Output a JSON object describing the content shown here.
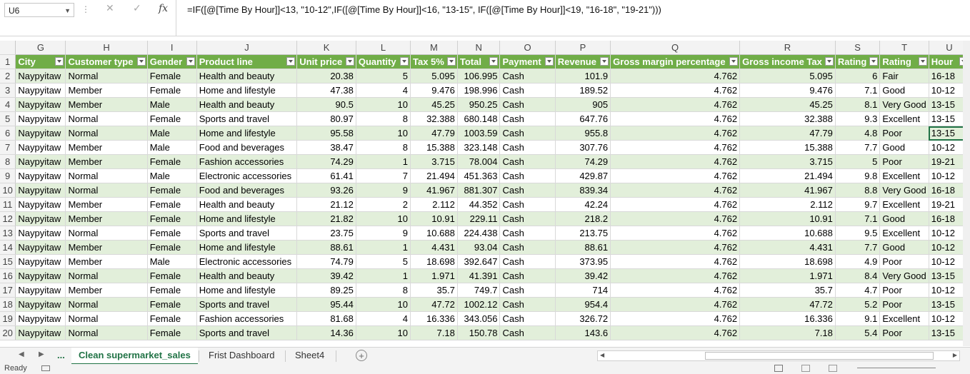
{
  "formula_bar": {
    "name_box": "U6",
    "formula": "=IF([@[Time By Hour]]<13, \"10-12\",IF([@[Time By Hour]]<16, \"13-15\", IF([@[Time By Hour]]<19, \"16-18\", \"19-21\")))",
    "fx": "fx",
    "cancel": "✕",
    "enter": "✓",
    "more": "⋮"
  },
  "columns": [
    "G",
    "H",
    "I",
    "J",
    "K",
    "L",
    "M",
    "N",
    "O",
    "P",
    "Q",
    "R",
    "S",
    "T",
    "U"
  ],
  "headers": [
    "City",
    "Customer type",
    "Gender",
    "Product line",
    "Unit price",
    "Quantity",
    "Tax 5%",
    "Total",
    "Payment",
    "Revenue",
    "Gross margin percentage",
    "Gross income Tax",
    "Rating",
    "Rating",
    "Hour"
  ],
  "rows": [
    {
      "n": "2",
      "c": [
        "Naypyitaw",
        "Normal",
        "Female",
        "Health and beauty",
        "20.38",
        "5",
        "5.095",
        "106.995",
        "Cash",
        "101.9",
        "4.762",
        "5.095",
        "6",
        "Fair",
        "16-18"
      ]
    },
    {
      "n": "3",
      "c": [
        "Naypyitaw",
        "Member",
        "Female",
        "Home and lifestyle",
        "47.38",
        "4",
        "9.476",
        "198.996",
        "Cash",
        "189.52",
        "4.762",
        "9.476",
        "7.1",
        "Good",
        "10-12"
      ]
    },
    {
      "n": "4",
      "c": [
        "Naypyitaw",
        "Member",
        "Male",
        "Health and beauty",
        "90.5",
        "10",
        "45.25",
        "950.25",
        "Cash",
        "905",
        "4.762",
        "45.25",
        "8.1",
        "Very Good",
        "13-15"
      ]
    },
    {
      "n": "5",
      "c": [
        "Naypyitaw",
        "Normal",
        "Female",
        "Sports and travel",
        "80.97",
        "8",
        "32.388",
        "680.148",
        "Cash",
        "647.76",
        "4.762",
        "32.388",
        "9.3",
        "Excellent",
        "13-15"
      ]
    },
    {
      "n": "6",
      "c": [
        "Naypyitaw",
        "Normal",
        "Male",
        "Home and lifestyle",
        "95.58",
        "10",
        "47.79",
        "1003.59",
        "Cash",
        "955.8",
        "4.762",
        "47.79",
        "4.8",
        "Poor",
        "13-15"
      ]
    },
    {
      "n": "7",
      "c": [
        "Naypyitaw",
        "Member",
        "Male",
        "Food and beverages",
        "38.47",
        "8",
        "15.388",
        "323.148",
        "Cash",
        "307.76",
        "4.762",
        "15.388",
        "7.7",
        "Good",
        "10-12"
      ]
    },
    {
      "n": "8",
      "c": [
        "Naypyitaw",
        "Member",
        "Female",
        "Fashion accessories",
        "74.29",
        "1",
        "3.715",
        "78.004",
        "Cash",
        "74.29",
        "4.762",
        "3.715",
        "5",
        "Poor",
        "19-21"
      ]
    },
    {
      "n": "9",
      "c": [
        "Naypyitaw",
        "Normal",
        "Male",
        "Electronic accessories",
        "61.41",
        "7",
        "21.494",
        "451.363",
        "Cash",
        "429.87",
        "4.762",
        "21.494",
        "9.8",
        "Excellent",
        "10-12"
      ]
    },
    {
      "n": "10",
      "c": [
        "Naypyitaw",
        "Normal",
        "Female",
        "Food and beverages",
        "93.26",
        "9",
        "41.967",
        "881.307",
        "Cash",
        "839.34",
        "4.762",
        "41.967",
        "8.8",
        "Very Good",
        "16-18"
      ]
    },
    {
      "n": "11",
      "c": [
        "Naypyitaw",
        "Member",
        "Female",
        "Health and beauty",
        "21.12",
        "2",
        "2.112",
        "44.352",
        "Cash",
        "42.24",
        "4.762",
        "2.112",
        "9.7",
        "Excellent",
        "19-21"
      ]
    },
    {
      "n": "12",
      "c": [
        "Naypyitaw",
        "Member",
        "Female",
        "Home and lifestyle",
        "21.82",
        "10",
        "10.91",
        "229.11",
        "Cash",
        "218.2",
        "4.762",
        "10.91",
        "7.1",
        "Good",
        "16-18"
      ]
    },
    {
      "n": "13",
      "c": [
        "Naypyitaw",
        "Normal",
        "Female",
        "Sports and travel",
        "23.75",
        "9",
        "10.688",
        "224.438",
        "Cash",
        "213.75",
        "4.762",
        "10.688",
        "9.5",
        "Excellent",
        "10-12"
      ]
    },
    {
      "n": "14",
      "c": [
        "Naypyitaw",
        "Member",
        "Female",
        "Home and lifestyle",
        "88.61",
        "1",
        "4.431",
        "93.04",
        "Cash",
        "88.61",
        "4.762",
        "4.431",
        "7.7",
        "Good",
        "10-12"
      ]
    },
    {
      "n": "15",
      "c": [
        "Naypyitaw",
        "Member",
        "Male",
        "Electronic accessories",
        "74.79",
        "5",
        "18.698",
        "392.647",
        "Cash",
        "373.95",
        "4.762",
        "18.698",
        "4.9",
        "Poor",
        "10-12"
      ]
    },
    {
      "n": "16",
      "c": [
        "Naypyitaw",
        "Normal",
        "Female",
        "Health and beauty",
        "39.42",
        "1",
        "1.971",
        "41.391",
        "Cash",
        "39.42",
        "4.762",
        "1.971",
        "8.4",
        "Very Good",
        "13-15"
      ]
    },
    {
      "n": "17",
      "c": [
        "Naypyitaw",
        "Member",
        "Female",
        "Home and lifestyle",
        "89.25",
        "8",
        "35.7",
        "749.7",
        "Cash",
        "714",
        "4.762",
        "35.7",
        "4.7",
        "Poor",
        "10-12"
      ]
    },
    {
      "n": "18",
      "c": [
        "Naypyitaw",
        "Normal",
        "Female",
        "Sports and travel",
        "95.44",
        "10",
        "47.72",
        "1002.12",
        "Cash",
        "954.4",
        "4.762",
        "47.72",
        "5.2",
        "Poor",
        "13-15"
      ]
    },
    {
      "n": "19",
      "c": [
        "Naypyitaw",
        "Normal",
        "Female",
        "Fashion accessories",
        "81.68",
        "4",
        "16.336",
        "343.056",
        "Cash",
        "326.72",
        "4.762",
        "16.336",
        "9.1",
        "Excellent",
        "10-12"
      ]
    },
    {
      "n": "20",
      "c": [
        "Naypyitaw",
        "Normal",
        "Female",
        "Sports and travel",
        "14.36",
        "10",
        "7.18",
        "150.78",
        "Cash",
        "143.6",
        "4.762",
        "7.18",
        "5.4",
        "Poor",
        "13-15"
      ]
    }
  ],
  "selected_cell": {
    "row": "6",
    "col": "U"
  },
  "tabs": {
    "ellipsis": "...",
    "items": [
      "Clean supermarket_sales",
      "Frist Dashboard",
      "Sheet4"
    ],
    "active": "Clean supermarket_sales",
    "add": "+"
  },
  "status": {
    "text": "Ready"
  },
  "colors": {
    "header_green": "#70ad47",
    "band_green": "#e2efda",
    "accent": "#217346"
  }
}
